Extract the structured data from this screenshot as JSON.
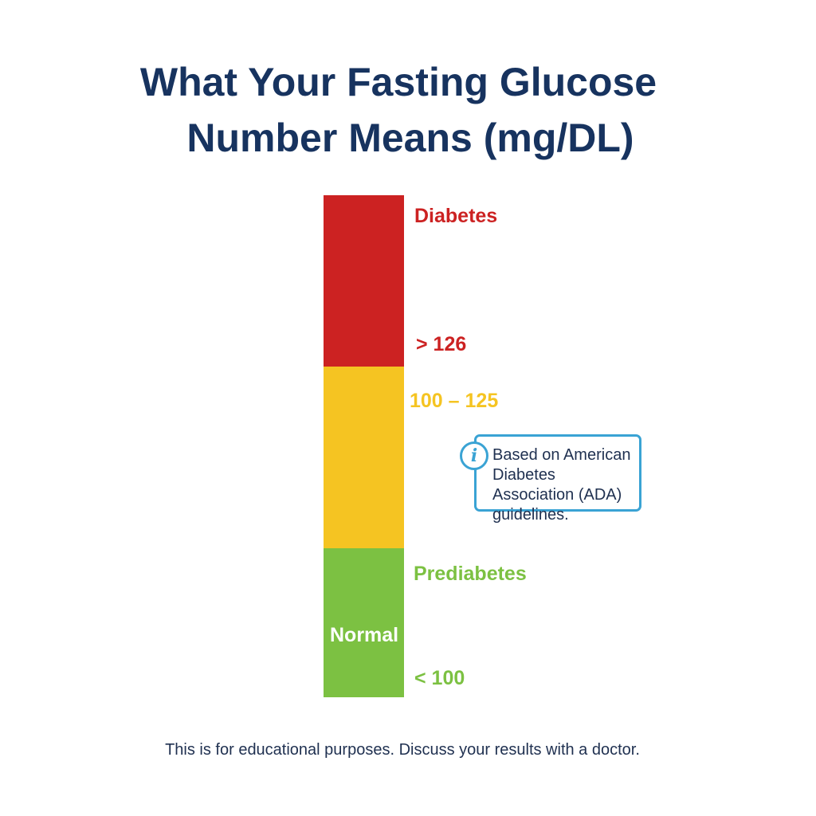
{
  "title": {
    "line1": "What Your Fasting Glucose",
    "line2": "Number Means (mg/DL)"
  },
  "scale": {
    "colors": {
      "diabetes": "#cc2222",
      "prediabetes": "#f5c422",
      "normal": "#7cc142"
    },
    "segments": [
      {
        "name": "Diabetes",
        "range": "> 126",
        "share": 0.34
      },
      {
        "name": "Prediabetes",
        "range": "100 - 125",
        "share": 0.36
      },
      {
        "name": "Normal",
        "range": "< 100",
        "share": 0.3
      }
    ],
    "labels": {
      "diabetes": "Diabetes",
      "diabetes_range": "> 126",
      "prediabetes_range": "100 – 125",
      "prediabetes": "Prediabetes",
      "normal": "Normal",
      "normal_range": "< 100"
    }
  },
  "info": {
    "icon": "info-icon",
    "text": "Based on American Diabetes Association (ADA) guidelines."
  },
  "footer": "This is for educational purposes. Discuss your results with a doctor."
}
